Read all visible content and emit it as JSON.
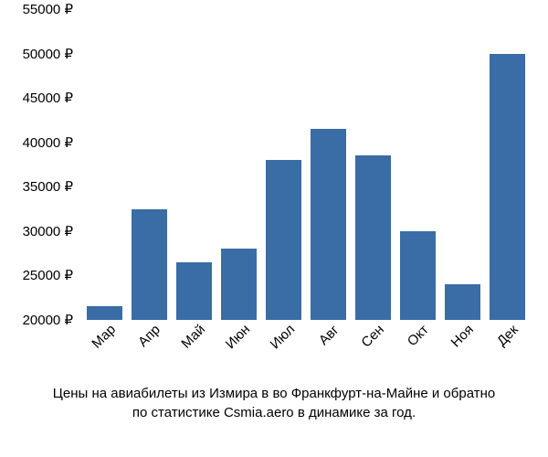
{
  "chart": {
    "type": "bar",
    "bar_color": "#3a6ca5",
    "background_color": "#ffffff",
    "text_color": "#000000",
    "font_size": 15,
    "bar_width_ratio": 0.78,
    "x_label_rotation": -45,
    "y_axis": {
      "min": 20000,
      "max": 55000,
      "ticks": [
        20000,
        25000,
        30000,
        35000,
        40000,
        45000,
        50000,
        55000
      ],
      "tick_labels": [
        "20000 ₽",
        "25000 ₽",
        "30000 ₽",
        "35000 ₽",
        "40000 ₽",
        "45000 ₽",
        "50000 ₽",
        "55000 ₽"
      ]
    },
    "categories": [
      "Мар",
      "Апр",
      "Май",
      "Июн",
      "Июл",
      "Авг",
      "Сен",
      "Окт",
      "Ноя",
      "Дек"
    ],
    "values": [
      21500,
      32500,
      26500,
      28000,
      38000,
      41500,
      38500,
      30000,
      24000,
      50000
    ]
  },
  "caption": {
    "line1": "Цены на авиабилеты из Измира в во Франкфурт-на-Майне и обратно",
    "line2": "по статистике Csmia.aero в динамике за год."
  }
}
